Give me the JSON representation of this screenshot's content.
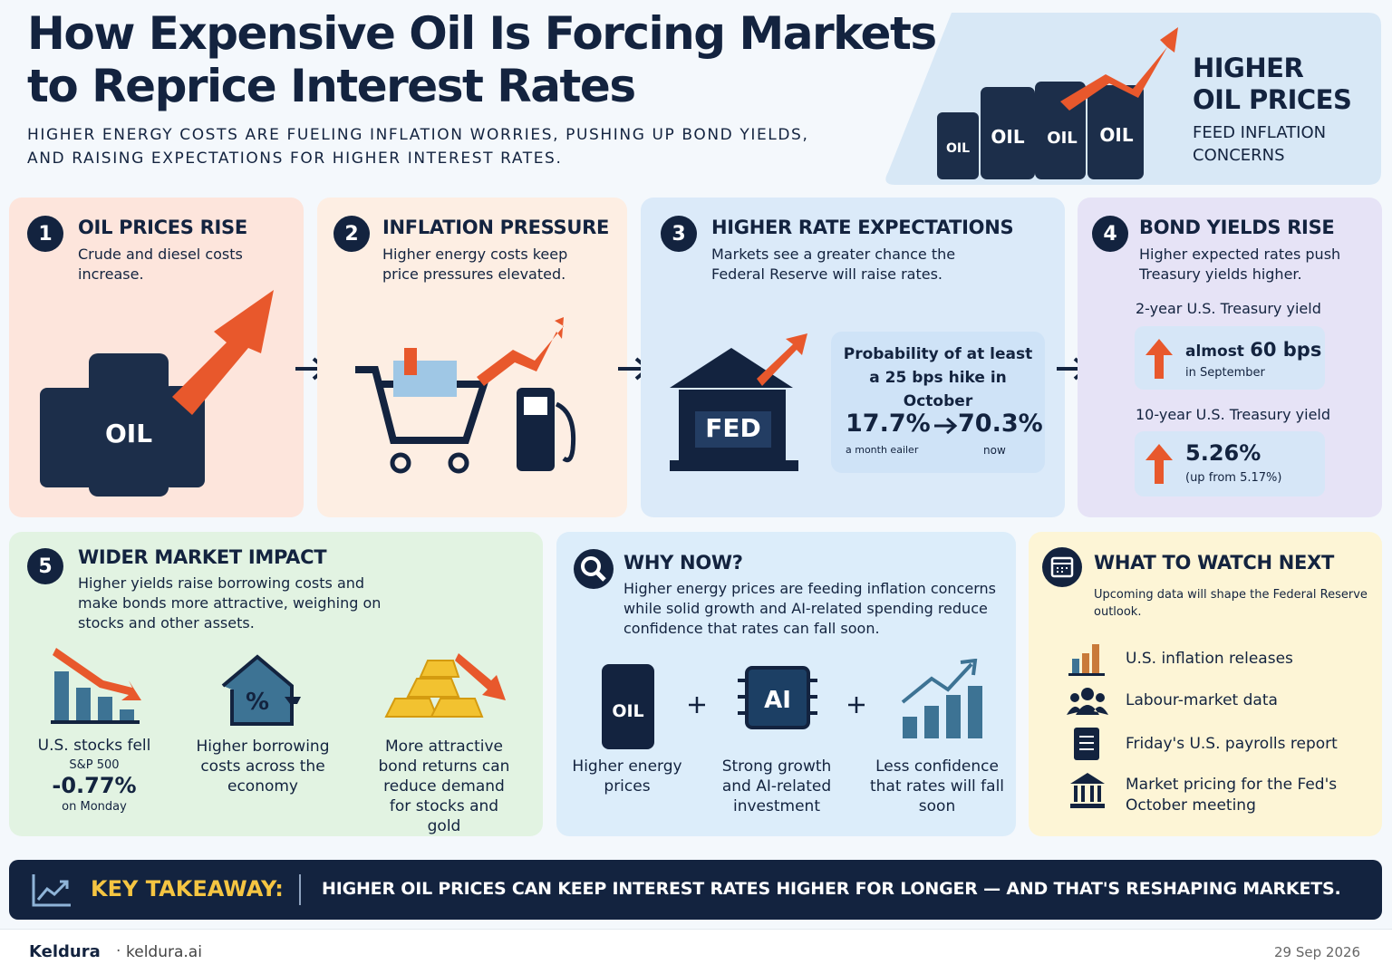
{
  "header": {
    "title_lines": [
      "How Expensive Oil Is Forcing Markets",
      "to Reprice Interest Rates"
    ],
    "subtitle_lines": [
      "HIGHER ENERGY COSTS ARE FUELING INFLATION WORRIES, PUSHING UP BOND YIELDS,",
      "AND RAISING EXPECTATIONS FOR HIGHER INTEREST RATES."
    ]
  },
  "hero": {
    "barrel_label": "OIL",
    "heading_lines": [
      "HIGHER",
      "OIL PRICES"
    ],
    "sub_lines": [
      "FEED INFLATION",
      "CONCERNS"
    ]
  },
  "steps": [
    {
      "number": "1",
      "title": "OIL PRICES RISE",
      "text": "Crude and diesel costs increase.",
      "icon_label": "OIL"
    },
    {
      "number": "2",
      "title": "INFLATION PRESSURE",
      "text": "Higher energy costs keep price pressures elevated."
    },
    {
      "number": "3",
      "title": "HIGHER RATE EXPECTATIONS",
      "text": "Markets see a greater chance the Federal Reserve will raise rates.",
      "icon_label": "FED",
      "probability": {
        "title": "Probability of at least a 25 bps hike in October",
        "from": "17.7%",
        "from_note": "a month eailer",
        "to": "70.3%",
        "to_note": "now"
      }
    },
    {
      "number": "4",
      "title": "BOND YIELDS RISE",
      "text": "Higher expected rates push Treasury yields higher.",
      "yields": [
        {
          "label": "2-year U.S. Treasury yield",
          "prefix": "almost",
          "value": "60 bps",
          "note": "in September"
        },
        {
          "label": "10-year U.S. Treasury yield",
          "value": "5.26%",
          "note": "(up from 5.17%)"
        }
      ]
    }
  ],
  "impact": {
    "number": "5",
    "title": "WIDER MARKET IMPACT",
    "text": "Higher yields raise borrowing costs and make bonds more attractive, weighing on stocks and other assets.",
    "stocks": {
      "label": "U.S. stocks fell",
      "index": "S&P 500",
      "value": "-0.77%",
      "note": "on Monday"
    },
    "borrowing": {
      "icon_label": "%",
      "label": "Higher borrowing costs across the economy"
    },
    "bonds": {
      "label": "More attractive bond returns can reduce demand for stocks and gold"
    }
  },
  "why_now": {
    "title": "WHY NOW?",
    "text": "Higher energy prices are feeding inflation concerns while solid growth and AI-related spending reduce confidence that rates can fall soon.",
    "items": [
      {
        "icon_label": "OIL",
        "label": "Higher energy prices"
      },
      {
        "icon_label": "AI",
        "label": "Strong growth and AI-related investment"
      },
      {
        "label": "Less confidence that rates will fall soon"
      }
    ]
  },
  "watch": {
    "title": "WHAT TO WATCH NEXT",
    "text": "Upcoming data will shape the Federal Reserve outlook.",
    "items": [
      "U.S. inflation releases",
      "Labour-market data",
      "Friday's U.S. payrolls report",
      "Market pricing for the Fed's October meeting"
    ]
  },
  "takeaway": {
    "label": "KEY TAKEAWAY:",
    "text": "HIGHER OIL PRICES CAN KEEP INTEREST RATES HIGHER FOR LONGER — AND THAT'S RESHAPING MARKETS."
  },
  "footer": {
    "brand": "Keldura",
    "site": "keldura.ai",
    "date": "29 Sep 2026"
  }
}
